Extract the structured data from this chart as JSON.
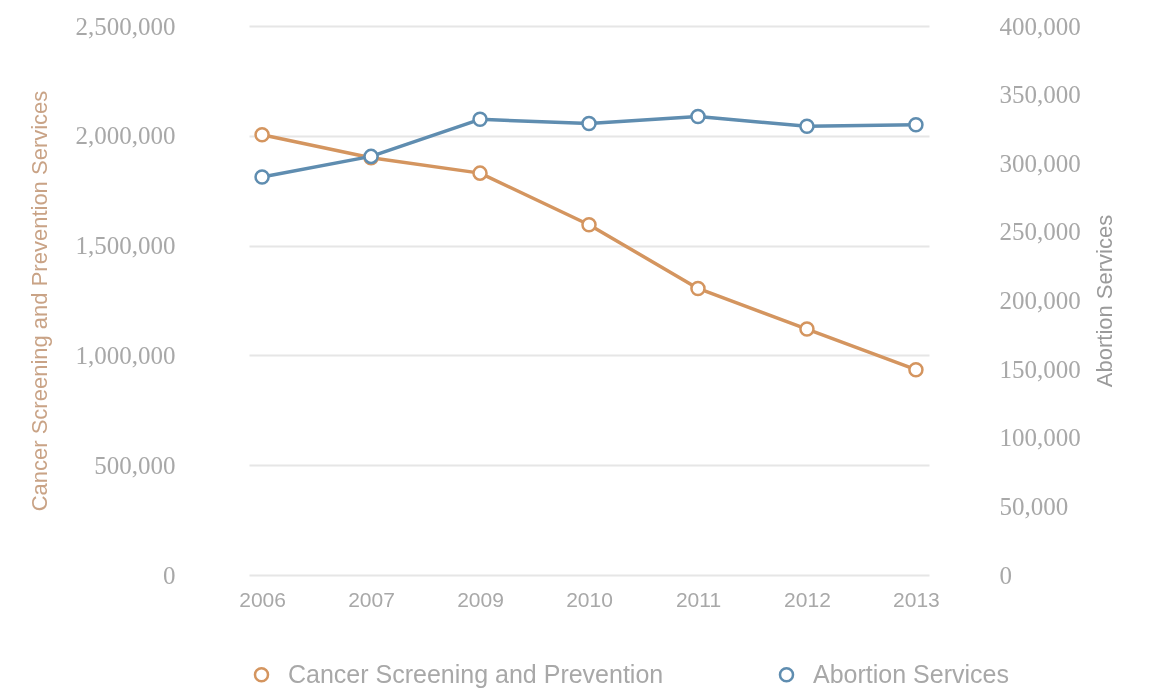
{
  "chart_data": {
    "type": "line",
    "categories": [
      "2006",
      "2007",
      "2009",
      "2010",
      "2011",
      "2012",
      "2013"
    ],
    "series": [
      {
        "name": "Cancer Screening and Prevention",
        "color": "#d4955f",
        "values": [
          2005000,
          1900000,
          1830000,
          1595000,
          1305000,
          1120000,
          935000
        ]
      },
      {
        "name": "Abortion Services",
        "color": "#5f8db0",
        "axis": "y2",
        "values": [
          290000,
          305000,
          332000,
          329000,
          334000,
          327000,
          328000
        ]
      }
    ],
    "ylabel": "Cancer Screening and Prevention Services",
    "y2label": "Abortion Services",
    "ylim": [
      0,
      2500000
    ],
    "yticks": [
      0,
      {
        "value": 500000,
        "label": "500,000"
      },
      {
        "value": 1000000,
        "label": "1,000,000"
      },
      {
        "value": 1500000,
        "label": "1,500,000"
      },
      {
        "value": 2000000,
        "label": "2,000,000"
      },
      {
        "value": 2500000,
        "label": "2,500,000"
      }
    ],
    "y2lim": [
      0,
      400000
    ],
    "y2ticks": [
      0,
      {
        "value": 50000,
        "label": "50,000"
      },
      {
        "value": 100000,
        "label": "100,000"
      },
      {
        "value": 150000,
        "label": "150,000"
      },
      {
        "value": 200000,
        "label": "200,000"
      },
      {
        "value": 250000,
        "label": "250,000"
      },
      {
        "value": 300000,
        "label": "300,000"
      },
      {
        "value": 350000,
        "label": "350,000"
      },
      {
        "value": 400000,
        "label": "400,000"
      }
    ],
    "grid": "y",
    "legend": "bottom",
    "marker": "circle",
    "line_style": "solid"
  }
}
